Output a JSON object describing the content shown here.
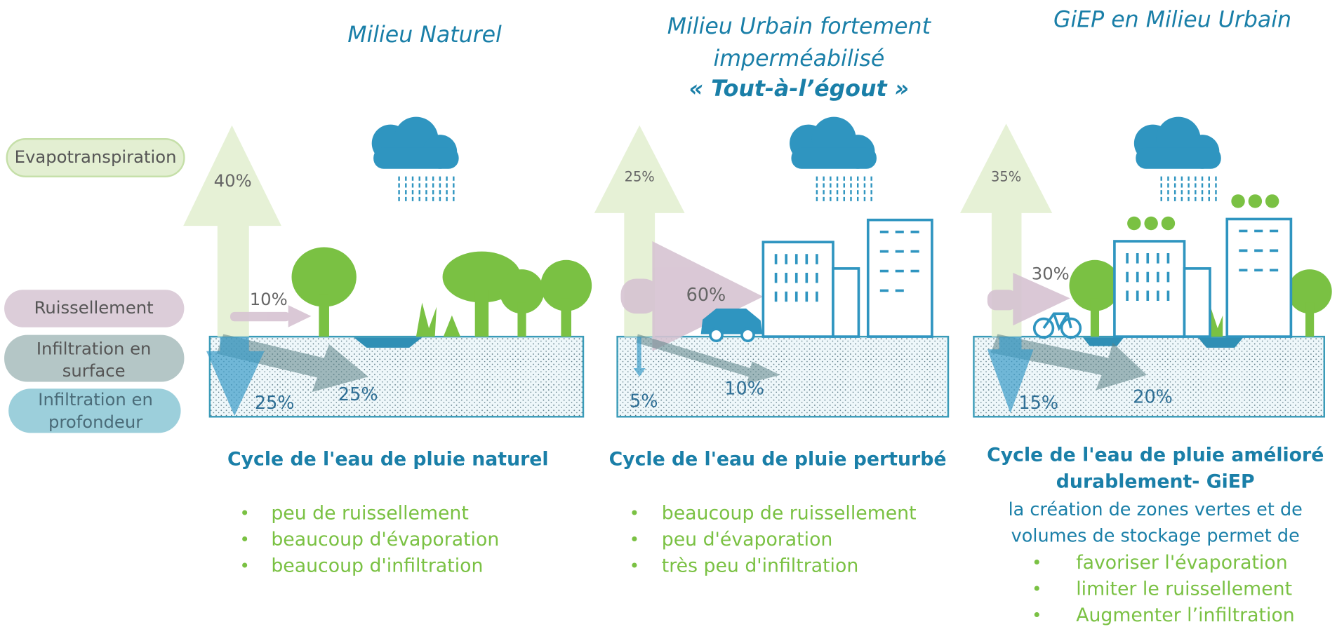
{
  "legend": [
    "Evapotranspiration",
    "Ruissellement",
    "Infiltration en surface",
    "Infiltration en profondeur"
  ],
  "panels": [
    {
      "title": [
        "Milieu Naturel"
      ],
      "percentages": {
        "evapotranspiration": "40%",
        "ruissellement": "10%",
        "infiltration_surface": "25%",
        "infiltration_profondeur": "25%"
      },
      "caption": [
        "Cycle de l'eau de pluie naturel"
      ],
      "bullets": [
        "peu de ruissellement",
        "beaucoup d'évaporation",
        "beaucoup d'infiltration"
      ]
    },
    {
      "title": [
        "Milieu Urbain fortement",
        "imperméabilisé"
      ],
      "subtitle": "« Tout-à-l’égout »",
      "percentages": {
        "evapotranspiration": "25%",
        "ruissellement": "60%",
        "infiltration_surface": "10%",
        "infiltration_profondeur": "5%"
      },
      "caption": [
        "Cycle de l'eau de pluie perturbé"
      ],
      "bullets": [
        "beaucoup de ruissellement",
        "peu d'évaporation",
        "très peu d'infiltration"
      ]
    },
    {
      "title": [
        "GiEP en Milieu Urbain"
      ],
      "percentages": {
        "evapotranspiration": "35%",
        "ruissellement": "30%",
        "infiltration_surface": "20%",
        "infiltration_profondeur": "15%"
      },
      "caption": [
        "Cycle de l'eau de pluie amélioré",
        "durablement- GiEP"
      ],
      "intro": [
        "la création de zones vertes et de",
        "volumes de stockage permet de"
      ],
      "bullets": [
        "favoriser l'évaporation",
        "limiter le ruissellement",
        "Augmenter l’infiltration"
      ]
    }
  ]
}
